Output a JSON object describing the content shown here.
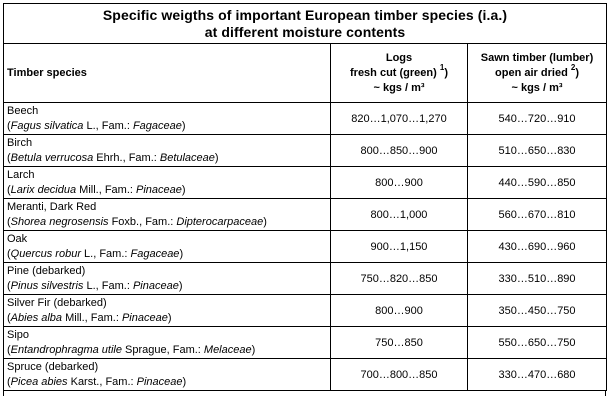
{
  "title_line1": "Specific weigths of important European timber species (i.a.)",
  "title_line2": "at different moisture contents",
  "headers": {
    "species": "Timber species",
    "logs_line1": "Logs",
    "logs_line2": "fresh cut (green)",
    "logs_sup": "1",
    "logs_line3": "~ kgs / m³",
    "sawn_line1": "Sawn timber (lumber)",
    "sawn_line2": "open air dried",
    "sawn_sup": "2",
    "sawn_line3": "~ kgs / m³"
  },
  "rows": [
    {
      "name": "Beech",
      "latin_italic": "Fagus silvatica",
      "author": " L.",
      "fam_prefix": ", Fam.: ",
      "family": "Fagaceae",
      "close": ")",
      "logs": "820…1,070…1,270",
      "sawn": "540…720…910"
    },
    {
      "name": "Birch",
      "latin_italic": "Betula verrucosa",
      "author": " Ehrh.",
      "fam_prefix": ", Fam.: ",
      "family": "Betulaceae",
      "close": ")",
      "logs": "800…850…900",
      "sawn": "510…650…830"
    },
    {
      "name": "Larch",
      "latin_italic": "Larix decidua",
      "author": " Mill.",
      "fam_prefix": ", Fam.: ",
      "family": "Pinaceae",
      "close": ")",
      "logs": "800…900",
      "sawn": "440…590…850"
    },
    {
      "name": "Meranti, Dark Red",
      "latin_italic": "Shorea negrosensis",
      "author": " Foxb.",
      "fam_prefix": ",  Fam.: ",
      "family": "Dipterocarpaceae",
      "close": ")",
      "logs": "800…1,000",
      "sawn": "560…670…810"
    },
    {
      "name": "Oak",
      "latin_italic": "Quercus robur",
      "author": " L.",
      "fam_prefix": ", Fam.: ",
      "family": "Fagaceae",
      "close": ")",
      "logs": "900…1,150",
      "sawn": "430…690…960"
    },
    {
      "name": "Pine (debarked)",
      "latin_italic": "Pinus silvestris",
      "author": " L.",
      "fam_prefix": ", Fam.: ",
      "family": "Pinaceae",
      "close": ")",
      "logs": "750…820…850",
      "sawn": "330…510…890"
    },
    {
      "name": "Silver Fir (debarked)",
      "latin_italic": "Abies alba",
      "author": " Mill.",
      "fam_prefix": ", Fam.: ",
      "family": "Pinaceae",
      "close": ")",
      "logs": "800…900",
      "sawn": "350…450…750"
    },
    {
      "name": "Sipo",
      "latin_italic": "Entandrophragma utile",
      "author": " Sprague",
      "fam_prefix": ", Fam.: ",
      "family": "Melaceae",
      "close": ")",
      "logs": "750…850",
      "sawn": "550…650…750"
    },
    {
      "name": "Spruce (debarked)",
      "latin_italic": "Picea abies",
      "author": " Karst.",
      "fam_prefix": ", Fam.: ",
      "family": "Pinaceae",
      "close": ")",
      "logs": "700…800…850",
      "sawn": "330…470…680"
    }
  ]
}
